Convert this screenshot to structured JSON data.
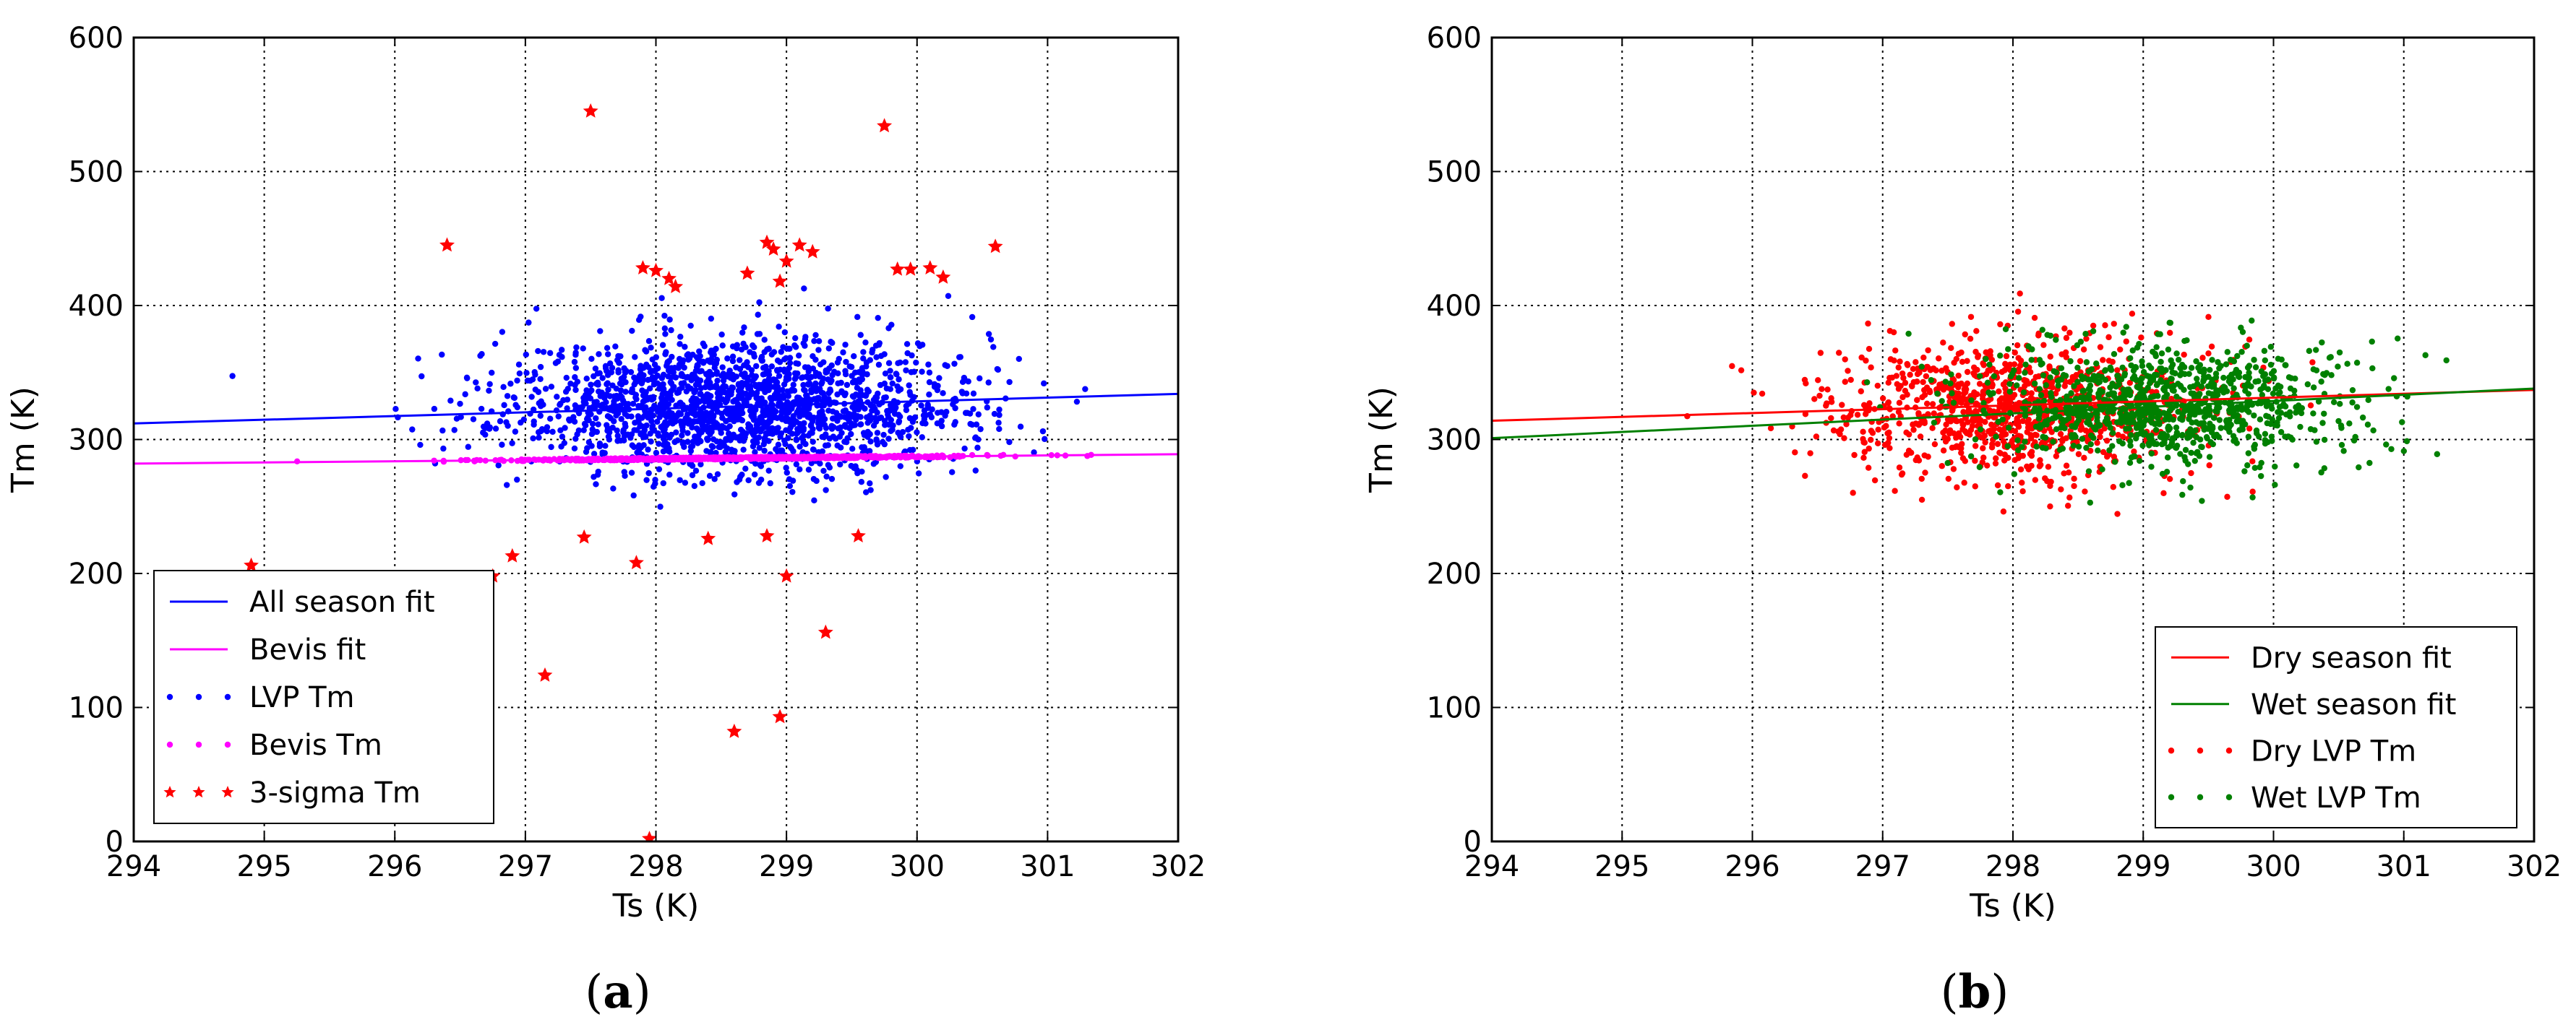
{
  "chart_data": [
    {
      "type": "scatter",
      "panel_label": "a",
      "xlabel": "Ts (K)",
      "ylabel": "Tm (K)",
      "xlim": [
        294,
        302
      ],
      "ylim": [
        0,
        600
      ],
      "xticks": [
        294,
        295,
        296,
        297,
        298,
        299,
        300,
        301,
        302
      ],
      "yticks": [
        0,
        100,
        200,
        300,
        400,
        500,
        600
      ],
      "grid": true,
      "legend_position": "lower-left",
      "series": [
        {
          "name": "All season fit",
          "kind": "line",
          "color": "#0000ff",
          "x": [
            294,
            302
          ],
          "y": [
            312,
            334
          ]
        },
        {
          "name": "Bevis fit",
          "kind": "line",
          "color": "#ff00ff",
          "x": [
            294,
            302
          ],
          "y": [
            282,
            289
          ]
        },
        {
          "name": "LVP Tm",
          "kind": "scatter",
          "color": "#0000ff",
          "x_range": [
            294,
            301.5
          ],
          "x_center": 298.6,
          "x_spread": 0.85,
          "y_center": 325,
          "y_spread": 25,
          "count": 1900
        },
        {
          "name": "Bevis Tm",
          "kind": "scatter",
          "color": "#ff00ff",
          "x_range": [
            294,
            301.5
          ],
          "x_center": 298.6,
          "x_spread": 0.85,
          "fit": "Bevis fit",
          "count": 900
        },
        {
          "name": "3-sigma  Tm",
          "kind": "scatter",
          "marker": "star",
          "color": "#ff0000",
          "x": [
            294.9,
            297.5,
            296.4,
            299.75,
            297.9,
            298.0,
            298.1,
            298.15,
            298.7,
            298.85,
            298.9,
            298.95,
            299.0,
            299.1,
            299.2,
            299.85,
            299.95,
            300.1,
            300.2,
            300.6,
            297.45,
            297.85,
            298.4,
            298.85,
            299.55,
            299.0,
            296.9,
            296.75,
            299.3,
            297.15,
            298.6,
            298.95,
            297.95
          ],
          "y": [
            206,
            545,
            445,
            534,
            428,
            426,
            420,
            414,
            424,
            447,
            442,
            418,
            433,
            445,
            440,
            427,
            427,
            428,
            421,
            444,
            227,
            208,
            226,
            228,
            228,
            198,
            213,
            198,
            156,
            124,
            82,
            93,
            2
          ]
        }
      ]
    },
    {
      "type": "scatter",
      "panel_label": "b",
      "xlabel": "Ts (K)",
      "ylabel": "Tm (K)",
      "xlim": [
        294,
        302
      ],
      "ylim": [
        0,
        600
      ],
      "xticks": [
        294,
        295,
        296,
        297,
        298,
        299,
        300,
        301,
        302
      ],
      "yticks": [
        0,
        100,
        200,
        300,
        400,
        500,
        600
      ],
      "grid": true,
      "legend_position": "lower-right",
      "series": [
        {
          "name": "Dry season fit",
          "kind": "line",
          "color": "#ff0000",
          "x": [
            294,
            302
          ],
          "y": [
            314,
            337
          ]
        },
        {
          "name": "Wet season fit",
          "kind": "line",
          "color": "#008000",
          "x": [
            294,
            302
          ],
          "y": [
            301,
            338
          ]
        },
        {
          "name": "Dry LVP Tm",
          "kind": "scatter",
          "color": "#ff0000",
          "x_range": [
            294,
            300.5
          ],
          "x_center": 298.0,
          "x_spread": 0.75,
          "y_center": 323,
          "y_spread": 26,
          "count": 1000
        },
        {
          "name": "Wet LVP Tm",
          "kind": "scatter",
          "color": "#008000",
          "x_range": [
            296.5,
            301.6
          ],
          "x_center": 299.2,
          "x_spread": 0.7,
          "y_center": 326,
          "y_spread": 23,
          "count": 1000
        }
      ]
    }
  ]
}
